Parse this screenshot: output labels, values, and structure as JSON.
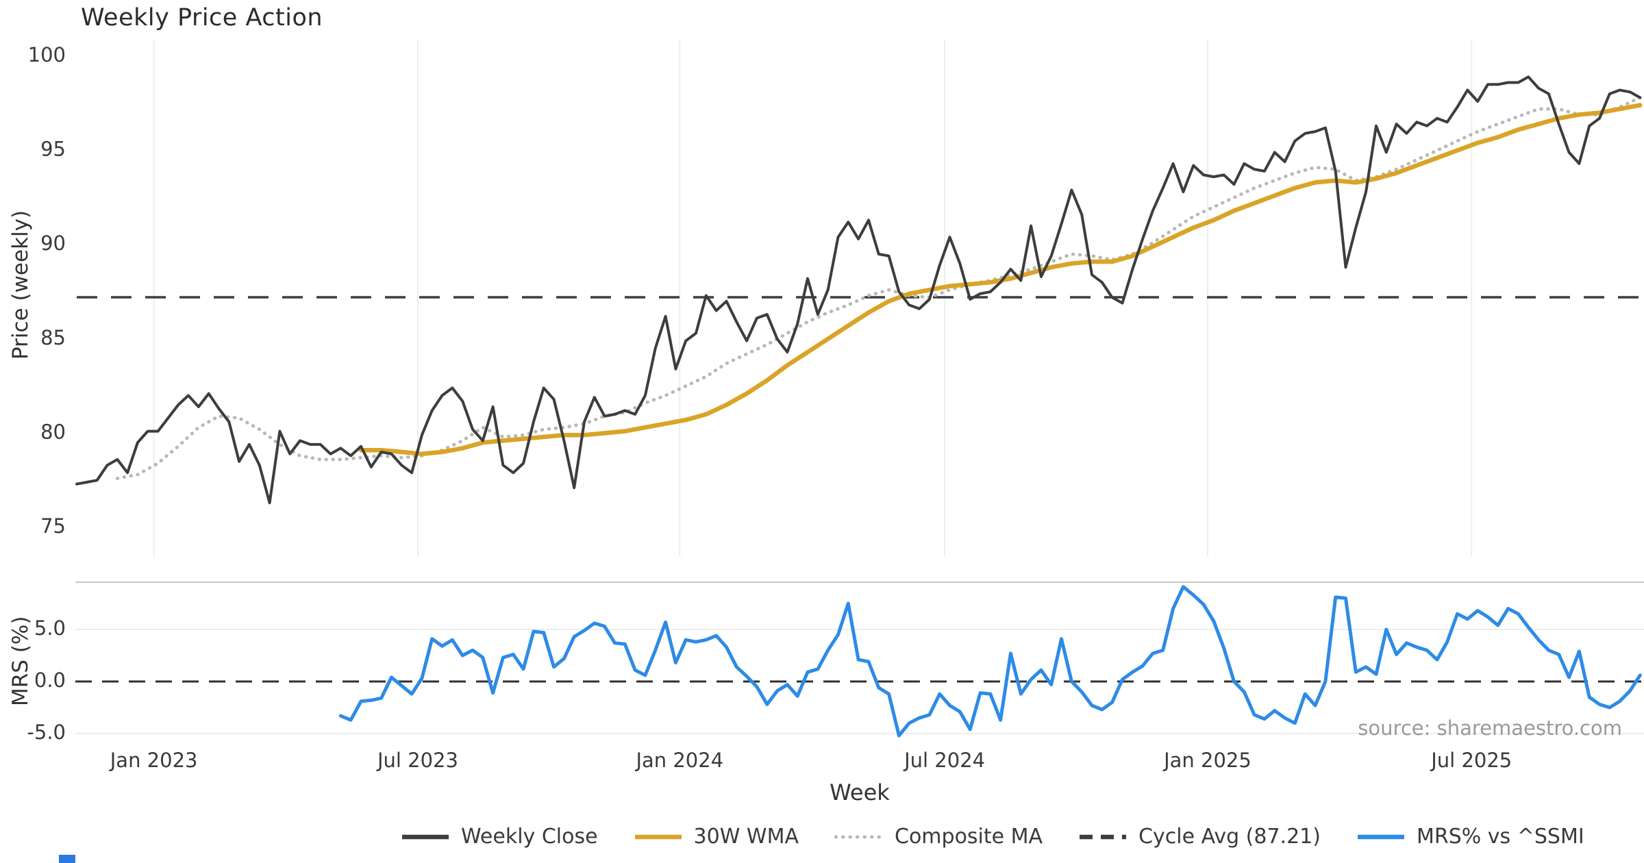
{
  "chart": {
    "title": "Weekly Price Action",
    "x_label": "Week",
    "price_axis_label": "Price (weekly)",
    "mrs_axis_label": "MRS (%)",
    "source_note": "source: sharemaestro.com",
    "colors": {
      "close": "#3d3d3d",
      "wma": "#D9A427",
      "composite": "#b8b8b8",
      "cycle_avg": "#3d3d3d",
      "mrs": "#2E8BE6",
      "gridline": "#ededed",
      "separator": "#c8c8c8",
      "tick_text": "#3a3a3a"
    }
  },
  "legend": {
    "items": [
      {
        "label": "Weekly Close",
        "type": "solid",
        "color_key": "close"
      },
      {
        "label": "30W WMA",
        "type": "solid",
        "color_key": "wma"
      },
      {
        "label": "Composite MA",
        "type": "dotted",
        "color_key": "composite"
      },
      {
        "label": "Cycle Avg (87.21)",
        "type": "dashed",
        "color_key": "cycle_avg"
      },
      {
        "label": "MRS% vs ^SSMI",
        "type": "solid",
        "color_key": "mrs"
      }
    ]
  },
  "chart_data": [
    {
      "type": "line",
      "panel": "price",
      "title": "Weekly Price Action",
      "ylabel": "Price (weekly)",
      "ylim": [
        74.5,
        100.3
      ],
      "yticks": [
        {
          "v": 100,
          "label": "100"
        },
        {
          "v": 95,
          "label": "95"
        },
        {
          "v": 90,
          "label": "90"
        },
        {
          "v": 85,
          "label": "85"
        },
        {
          "v": 80,
          "label": "80"
        },
        {
          "v": 75,
          "label": "75"
        }
      ],
      "x_start_date": "2022-11-07",
      "frequency": "weekly",
      "total_weeks": 155,
      "xtick_labels": [
        "Jan 2023",
        "Jul 2023",
        "Jan 2024",
        "Jul 2024",
        "Jan 2025",
        "Jul 2025"
      ],
      "xtick_weeks": [
        7.6,
        33.6,
        59.4,
        85.5,
        111.4,
        137.4
      ],
      "grid": "vertical-only",
      "cycle_avg": 87.21,
      "legend_position": "bottom-center",
      "series": [
        {
          "name": "Weekly Close",
          "color_key": "close",
          "style": "solid",
          "start_week": 0,
          "week_step": 1,
          "values": [
            77.3,
            77.4,
            77.5,
            78.3,
            78.6,
            77.9,
            79.5,
            80.1,
            80.1,
            80.8,
            81.5,
            82.0,
            81.4,
            82.1,
            81.3,
            80.6,
            78.5,
            79.4,
            78.3,
            76.3,
            80.1,
            78.9,
            79.6,
            79.4,
            79.4,
            78.9,
            79.2,
            78.8,
            79.3,
            78.2,
            79.0,
            78.9,
            78.3,
            77.9,
            79.9,
            81.2,
            82.0,
            82.4,
            81.7,
            80.2,
            79.6,
            81.4,
            78.3,
            77.9,
            78.4,
            80.6,
            82.4,
            81.8,
            79.6,
            77.1,
            80.6,
            81.9,
            80.9,
            81.0,
            81.2,
            81.0,
            82.0,
            84.5,
            86.2,
            83.4,
            84.9,
            85.3,
            87.3,
            86.5,
            87.0,
            85.9,
            84.9,
            86.1,
            86.3,
            85.0,
            84.3,
            85.8,
            88.2,
            86.3,
            87.6,
            90.4,
            91.2,
            90.3,
            91.3,
            89.5,
            89.4,
            87.5,
            86.8,
            86.6,
            87.1,
            88.9,
            90.4,
            89.0,
            87.1,
            87.4,
            87.5,
            88.0,
            88.7,
            88.1,
            91.0,
            88.3,
            89.4,
            91.1,
            92.9,
            91.6,
            88.4,
            88.0,
            87.2,
            86.9,
            88.7,
            90.3,
            91.8,
            93.0,
            94.3,
            92.8,
            94.2,
            93.7,
            93.6,
            93.7,
            93.2,
            94.3,
            94.0,
            93.9,
            94.9,
            94.4,
            95.5,
            95.9,
            96.0,
            96.2,
            93.9,
            88.8,
            90.9,
            92.8,
            96.3,
            94.9,
            96.4,
            95.9,
            96.5,
            96.3,
            96.7,
            96.5,
            97.3,
            98.2,
            97.6,
            98.5,
            98.5,
            98.6,
            98.6,
            98.9,
            98.3,
            98.0,
            96.4,
            94.9,
            94.3,
            96.3,
            96.7,
            98.0,
            98.2,
            98.1,
            97.8
          ]
        },
        {
          "name": "30W WMA",
          "color_key": "wma",
          "style": "solid",
          "start_week": 28,
          "week_step": 2,
          "values": [
            79.1,
            79.1,
            79.0,
            78.9,
            79.0,
            79.2,
            79.5,
            79.6,
            79.7,
            79.8,
            79.9,
            79.9,
            80.0,
            80.1,
            80.3,
            80.5,
            80.7,
            81.0,
            81.5,
            82.1,
            82.8,
            83.6,
            84.3,
            85.0,
            85.7,
            86.4,
            87.0,
            87.4,
            87.6,
            87.8,
            87.9,
            88.0,
            88.2,
            88.5,
            88.8,
            89.0,
            89.1,
            89.1,
            89.4,
            89.9,
            90.4,
            90.9,
            91.3,
            91.8,
            92.2,
            92.6,
            93.0,
            93.3,
            93.4,
            93.3,
            93.5,
            93.8,
            94.2,
            94.6,
            95.0,
            95.4,
            95.7,
            96.1,
            96.4,
            96.7,
            96.9,
            97.0,
            97.2,
            97.4
          ]
        },
        {
          "name": "Composite MA",
          "color_key": "composite",
          "style": "dotted",
          "start_week": 4,
          "week_step": 2,
          "values": [
            77.6,
            77.8,
            78.4,
            79.3,
            80.3,
            80.9,
            80.8,
            80.2,
            79.4,
            78.8,
            78.6,
            78.6,
            78.7,
            78.8,
            78.7,
            78.8,
            79.1,
            79.6,
            80.3,
            79.8,
            79.9,
            80.2,
            80.3,
            80.5,
            80.9,
            81.1,
            81.6,
            82.0,
            82.5,
            83.0,
            83.7,
            84.2,
            84.7,
            85.3,
            85.9,
            86.4,
            86.8,
            87.3,
            87.6,
            87.3,
            87.2,
            87.6,
            87.9,
            88.1,
            88.4,
            88.7,
            89.1,
            89.5,
            89.4,
            89.2,
            89.5,
            90.1,
            90.8,
            91.5,
            92.0,
            92.5,
            93.0,
            93.4,
            93.8,
            94.1,
            94.0,
            93.4,
            93.6,
            94.0,
            94.5,
            95.0,
            95.5,
            96.0,
            96.4,
            96.8,
            97.2,
            97.2,
            96.9,
            96.9,
            97.3,
            97.8
          ]
        }
      ]
    },
    {
      "type": "line",
      "panel": "mrs",
      "ylabel": "MRS (%)",
      "ylim": [
        -6.2,
        9.4
      ],
      "yticks": [
        {
          "v": 5,
          "label": "5.0"
        },
        {
          "v": 0,
          "label": "0.0"
        },
        {
          "v": -5,
          "label": "-5.0"
        }
      ],
      "zero_line": "dashed",
      "series": [
        {
          "name": "MRS% vs ^SSMI",
          "color_key": "mrs",
          "style": "solid",
          "start_week": 26,
          "week_step": 1,
          "values": [
            -3.3,
            -3.7,
            -1.9,
            -1.8,
            -1.6,
            0.4,
            -0.4,
            -1.2,
            0.3,
            4.1,
            3.4,
            4.0,
            2.5,
            3.0,
            2.3,
            -1.1,
            2.3,
            2.6,
            1.2,
            4.8,
            4.7,
            1.4,
            2.2,
            4.3,
            4.9,
            5.6,
            5.3,
            3.7,
            3.6,
            1.1,
            0.6,
            3.0,
            5.7,
            1.8,
            4.0,
            3.8,
            4.0,
            4.4,
            3.3,
            1.4,
            0.5,
            -0.5,
            -2.2,
            -0.9,
            -0.3,
            -1.4,
            0.9,
            1.2,
            3.0,
            4.5,
            7.5,
            2.1,
            1.9,
            -0.6,
            -1.2,
            -5.2,
            -4.0,
            -3.5,
            -3.2,
            -1.2,
            -2.3,
            -2.9,
            -4.6,
            -1.1,
            -1.2,
            -3.7,
            2.7,
            -1.2,
            0.2,
            1.1,
            -0.3,
            4.1,
            0.0,
            -1.0,
            -2.3,
            -2.7,
            -2.0,
            0.2,
            0.9,
            1.5,
            2.7,
            3.0,
            7.0,
            9.1,
            8.3,
            7.4,
            5.8,
            3.2,
            0.0,
            -1.0,
            -3.2,
            -3.6,
            -2.8,
            -3.5,
            -4.0,
            -1.2,
            -2.3,
            0.0,
            8.1,
            8.0,
            0.9,
            1.4,
            0.7,
            5.0,
            2.6,
            3.7,
            3.3,
            3.0,
            2.1,
            3.8,
            6.5,
            6.0,
            6.8,
            6.2,
            5.4,
            7.0,
            6.5,
            5.2,
            4.0,
            3.0,
            2.6,
            0.4,
            2.9,
            -1.5,
            -2.2,
            -2.5,
            -1.9,
            -0.9,
            0.6
          ]
        }
      ]
    }
  ]
}
